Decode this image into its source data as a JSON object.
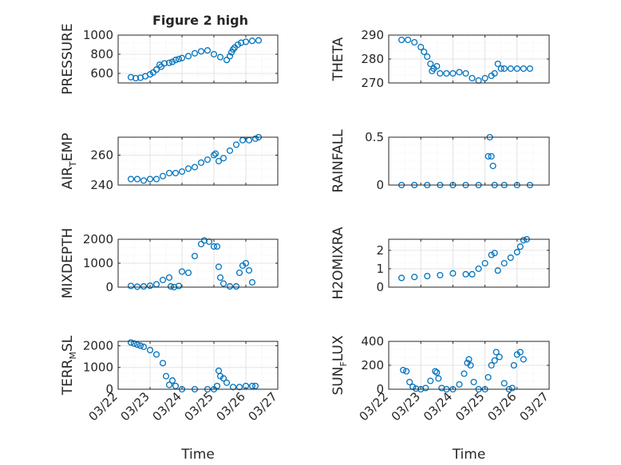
{
  "figure": {
    "title": "Figure 2 high",
    "marker_color": "#0072BD"
  },
  "chart_data": [
    {
      "type": "scatter",
      "ylabel": "PRESSURE",
      "ylim": [
        500,
        1000
      ],
      "yticks": [
        600,
        800,
        1000
      ],
      "xlim": [
        0,
        5
      ],
      "xticks": [],
      "xlabel": "",
      "grid": true,
      "x": [
        0.4,
        0.55,
        0.7,
        0.85,
        1.0,
        1.1,
        1.2,
        1.3,
        1.35,
        1.45,
        1.6,
        1.7,
        1.8,
        1.9,
        2.0,
        2.2,
        2.4,
        2.6,
        2.8,
        3.0,
        3.2,
        3.4,
        3.5,
        3.55,
        3.6,
        3.65,
        3.75,
        3.85,
        4.0,
        4.2,
        4.4
      ],
      "y": [
        560,
        550,
        555,
        570,
        590,
        610,
        640,
        690,
        670,
        705,
        710,
        720,
        740,
        750,
        760,
        780,
        810,
        830,
        840,
        800,
        770,
        740,
        780,
        820,
        850,
        870,
        900,
        920,
        930,
        940,
        945
      ]
    },
    {
      "type": "scatter",
      "ylabel": "THETA",
      "ylim": [
        270,
        290
      ],
      "yticks": [
        270,
        280,
        290
      ],
      "xlim": [
        0,
        5
      ],
      "xticks": [],
      "xlabel": "",
      "grid": true,
      "x": [
        0.4,
        0.6,
        0.8,
        1.0,
        1.1,
        1.2,
        1.3,
        1.35,
        1.4,
        1.5,
        1.6,
        1.8,
        2.0,
        2.2,
        2.4,
        2.6,
        2.8,
        3.0,
        3.2,
        3.3,
        3.4,
        3.5,
        3.6,
        3.8,
        4.0,
        4.2,
        4.4
      ],
      "y": [
        288,
        288,
        287,
        285,
        283,
        281,
        278,
        275,
        276,
        277,
        274,
        274,
        274,
        274.5,
        274,
        272,
        271,
        272,
        273,
        274,
        278,
        276,
        276,
        276,
        276,
        276,
        276
      ]
    },
    {
      "type": "scatter",
      "ylabel": "AIR_TEMP",
      "ylim": [
        240,
        272
      ],
      "yticks": [
        240,
        260
      ],
      "xlim": [
        0,
        5
      ],
      "xticks": [],
      "xlabel": "",
      "grid": true,
      "x": [
        0.4,
        0.6,
        0.8,
        1.0,
        1.2,
        1.4,
        1.6,
        1.8,
        2.0,
        2.2,
        2.4,
        2.6,
        2.8,
        3.0,
        3.05,
        3.15,
        3.3,
        3.5,
        3.7,
        3.9,
        4.1,
        4.3,
        4.4
      ],
      "y": [
        244,
        244,
        243,
        244,
        244,
        246,
        248,
        248,
        249,
        251,
        252,
        255,
        257,
        260,
        261,
        256,
        258,
        263,
        267,
        270,
        270,
        271,
        272
      ]
    },
    {
      "type": "scatter",
      "ylabel": "RAINFALL",
      "ylim": [
        0,
        0.5
      ],
      "yticks": [
        0,
        0.5
      ],
      "xlim": [
        0,
        5
      ],
      "xticks": [],
      "xlabel": "",
      "grid": true,
      "x": [
        0.4,
        0.8,
        1.2,
        1.6,
        2.0,
        2.4,
        2.8,
        3.1,
        3.15,
        3.2,
        3.25,
        3.3,
        3.6,
        4.0,
        4.4
      ],
      "y": [
        0,
        0,
        0,
        0,
        0,
        0,
        0,
        0.3,
        0.5,
        0.3,
        0.2,
        0,
        0,
        0,
        0
      ]
    },
    {
      "type": "scatter",
      "ylabel": "MIXDEPTH",
      "ylim": [
        0,
        2000
      ],
      "yticks": [
        0,
        1000,
        2000
      ],
      "xlim": [
        0,
        5
      ],
      "xticks": [],
      "xlabel": "",
      "grid": true,
      "x": [
        0.4,
        0.6,
        0.8,
        1.0,
        1.2,
        1.4,
        1.6,
        1.65,
        1.75,
        1.9,
        2.0,
        2.2,
        2.4,
        2.6,
        2.7,
        2.85,
        3.0,
        3.1,
        3.15,
        3.2,
        3.3,
        3.5,
        3.7,
        3.8,
        3.9,
        4.0,
        4.1,
        4.2
      ],
      "y": [
        50,
        20,
        30,
        60,
        120,
        300,
        400,
        30,
        0,
        50,
        650,
        600,
        1300,
        1800,
        1950,
        1900,
        1700,
        1700,
        850,
        400,
        150,
        30,
        30,
        600,
        900,
        1000,
        700,
        200
      ]
    },
    {
      "type": "scatter",
      "ylabel": "H2OMIXRA",
      "ylim": [
        0,
        2.6
      ],
      "yticks": [
        0,
        1,
        2
      ],
      "xlim": [
        0,
        5
      ],
      "xticks": [],
      "xlabel": "",
      "grid": true,
      "x": [
        0.4,
        0.8,
        1.2,
        1.6,
        2.0,
        2.4,
        2.6,
        2.8,
        3.0,
        3.2,
        3.3,
        3.4,
        3.6,
        3.8,
        4.0,
        4.1,
        4.2,
        4.3
      ],
      "y": [
        0.5,
        0.55,
        0.6,
        0.65,
        0.75,
        0.7,
        0.7,
        1.0,
        1.3,
        1.75,
        1.85,
        0.9,
        1.3,
        1.6,
        1.9,
        2.2,
        2.55,
        2.6
      ]
    },
    {
      "type": "scatter",
      "ylabel": "TERR_MSL",
      "ylim": [
        0,
        2200
      ],
      "yticks": [
        0,
        1000,
        2000
      ],
      "xlim": [
        0,
        5
      ],
      "xticks": [
        "03/22",
        "03/23",
        "03/24",
        "03/25",
        "03/26",
        "03/27"
      ],
      "xlabel": "Time",
      "grid": true,
      "x": [
        0.4,
        0.5,
        0.6,
        0.7,
        0.8,
        1.0,
        1.2,
        1.4,
        1.5,
        1.6,
        1.7,
        1.8,
        2.0,
        2.4,
        2.8,
        3.0,
        3.1,
        3.15,
        3.2,
        3.3,
        3.4,
        3.6,
        3.8,
        4.0,
        4.2,
        4.3
      ],
      "y": [
        2150,
        2100,
        2050,
        2000,
        1950,
        1800,
        1600,
        1200,
        600,
        200,
        400,
        150,
        0,
        0,
        0,
        0,
        150,
        850,
        600,
        500,
        300,
        100,
        100,
        150,
        150,
        150
      ]
    },
    {
      "type": "scatter",
      "ylabel": "SUN_FLUX",
      "ylim": [
        0,
        400
      ],
      "yticks": [
        0,
        200,
        400
      ],
      "xlim": [
        0,
        5
      ],
      "xticks": [
        "03/22",
        "03/23",
        "03/24",
        "03/25",
        "03/26",
        "03/27"
      ],
      "xlabel": "Time",
      "grid": true,
      "x": [
        0.45,
        0.55,
        0.65,
        0.75,
        0.85,
        1.0,
        1.15,
        1.3,
        1.45,
        1.5,
        1.55,
        1.65,
        1.8,
        2.0,
        2.2,
        2.35,
        2.45,
        2.5,
        2.55,
        2.65,
        2.8,
        3.0,
        3.1,
        3.2,
        3.3,
        3.35,
        3.45,
        3.6,
        3.75,
        3.85,
        3.9,
        4.0,
        4.1,
        4.2
      ],
      "y": [
        160,
        150,
        60,
        20,
        5,
        0,
        10,
        70,
        150,
        140,
        90,
        10,
        0,
        0,
        40,
        130,
        220,
        250,
        200,
        60,
        0,
        0,
        100,
        200,
        240,
        310,
        270,
        50,
        0,
        10,
        200,
        290,
        310,
        250
      ]
    }
  ]
}
